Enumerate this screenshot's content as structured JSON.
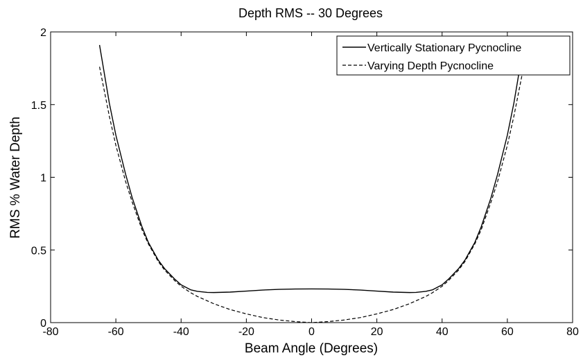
{
  "chart_data": {
    "type": "line",
    "title": "Depth RMS -- 30 Degrees",
    "xlabel": "Beam Angle (Degrees)",
    "ylabel": "RMS % Water Depth",
    "xlim": [
      -80,
      80
    ],
    "ylim": [
      0,
      2
    ],
    "xticks": [
      -80,
      -60,
      -40,
      -20,
      0,
      20,
      40,
      60,
      80
    ],
    "yticks": [
      0,
      0.5,
      1,
      1.5,
      2
    ],
    "ytick_labels": [
      "0",
      "0.5",
      "1",
      "1.5",
      "2"
    ],
    "grid": false,
    "legend_position": "top-right",
    "series": [
      {
        "name": "Vertically Stationary Pycnocline",
        "style": "solid",
        "color": "#000000",
        "x": [
          -65,
          -62,
          -60,
          -57,
          -55,
          -52,
          -50,
          -47,
          -45,
          -42,
          -40,
          -37,
          -35,
          -32,
          -30,
          -25,
          -20,
          -15,
          -10,
          -5,
          0,
          5,
          10,
          15,
          20,
          25,
          30,
          32,
          35,
          37,
          40,
          42,
          45,
          47,
          50,
          52,
          55,
          57,
          60,
          62,
          65
        ],
        "y": [
          1.91,
          1.51,
          1.29,
          1.02,
          0.86,
          0.66,
          0.55,
          0.43,
          0.37,
          0.3,
          0.26,
          0.225,
          0.215,
          0.208,
          0.207,
          0.21,
          0.217,
          0.224,
          0.229,
          0.231,
          0.232,
          0.231,
          0.229,
          0.224,
          0.217,
          0.21,
          0.207,
          0.208,
          0.215,
          0.225,
          0.26,
          0.3,
          0.37,
          0.43,
          0.55,
          0.66,
          0.86,
          1.02,
          1.29,
          1.51,
          1.91
        ]
      },
      {
        "name": "Varying Depth Pycnocline",
        "style": "dashed",
        "color": "#000000",
        "x": [
          -65,
          -62,
          -60,
          -57,
          -55,
          -52,
          -50,
          -47,
          -45,
          -42,
          -40,
          -37,
          -35,
          -32,
          -30,
          -25,
          -20,
          -15,
          -10,
          -5,
          0,
          5,
          10,
          15,
          20,
          25,
          30,
          32,
          35,
          37,
          40,
          42,
          45,
          47,
          50,
          52,
          55,
          57,
          60,
          62,
          65
        ],
        "y": [
          1.76,
          1.42,
          1.22,
          0.97,
          0.83,
          0.64,
          0.54,
          0.42,
          0.36,
          0.29,
          0.25,
          0.205,
          0.18,
          0.15,
          0.13,
          0.09,
          0.06,
          0.035,
          0.018,
          0.007,
          0.0,
          0.007,
          0.018,
          0.035,
          0.06,
          0.09,
          0.13,
          0.15,
          0.18,
          0.205,
          0.25,
          0.29,
          0.36,
          0.42,
          0.54,
          0.64,
          0.83,
          0.97,
          1.22,
          1.42,
          1.76
        ]
      }
    ]
  }
}
